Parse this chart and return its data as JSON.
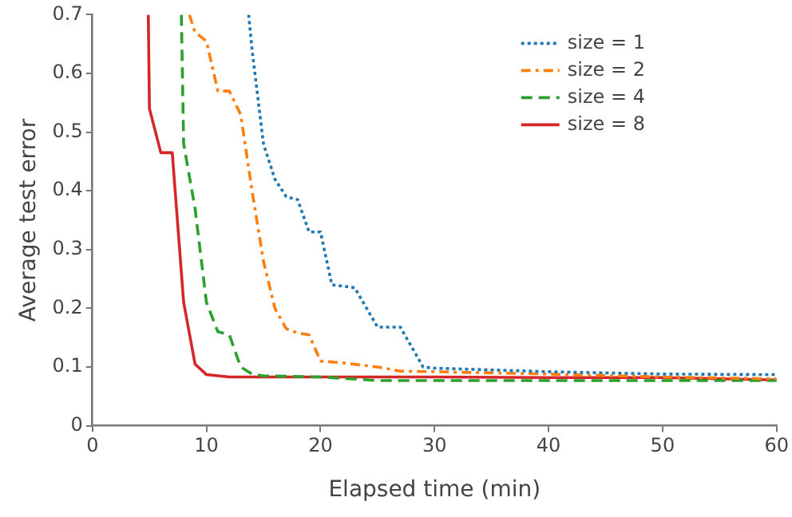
{
  "chart_data": {
    "type": "line",
    "xlabel": "Elapsed time (min)",
    "ylabel": "Average test error",
    "xlim": [
      0,
      60
    ],
    "ylim": [
      0,
      0.7
    ],
    "xticks": [
      0,
      10,
      20,
      30,
      40,
      50,
      60
    ],
    "yticks": [
      0,
      0.1,
      0.2,
      0.3,
      0.4,
      0.5,
      0.6,
      0.7
    ],
    "grid": false,
    "legend": "top right",
    "marker": "none",
    "series": [
      {
        "name": "size = 1",
        "color": "#1f77b4",
        "line_style": "dotted",
        "x": [
          13.7,
          14,
          15,
          16,
          17,
          18,
          19,
          20,
          21,
          23,
          25,
          27,
          29,
          30,
          40,
          50,
          60
        ],
        "values": [
          0.7,
          0.64,
          0.48,
          0.42,
          0.39,
          0.385,
          0.33,
          0.33,
          0.24,
          0.235,
          0.168,
          0.168,
          0.1,
          0.098,
          0.092,
          0.088,
          0.087
        ]
      },
      {
        "name": "size = 2",
        "color": "#ff7f0e",
        "line_style": "dashdot",
        "x": [
          8.5,
          9,
          10,
          11,
          12,
          13,
          14,
          15,
          16,
          17,
          18,
          19,
          20,
          22,
          25,
          27,
          30,
          40,
          50,
          60
        ],
        "values": [
          0.7,
          0.67,
          0.655,
          0.57,
          0.57,
          0.53,
          0.4,
          0.28,
          0.2,
          0.165,
          0.158,
          0.155,
          0.11,
          0.107,
          0.1,
          0.093,
          0.092,
          0.088,
          0.083,
          0.08
        ]
      },
      {
        "name": "size = 4",
        "color": "#2ca02c",
        "line_style": "dashed",
        "x": [
          7.8,
          8,
          9,
          10,
          11,
          12,
          13,
          14,
          15,
          20,
          25,
          30,
          60
        ],
        "values": [
          0.7,
          0.48,
          0.37,
          0.21,
          0.16,
          0.155,
          0.1,
          0.088,
          0.085,
          0.083,
          0.077,
          0.077,
          0.077
        ]
      },
      {
        "name": "size = 8",
        "color": "#d62728",
        "line_style": "solid",
        "x": [
          4.9,
          5,
          6,
          7,
          8,
          9,
          10,
          12,
          20,
          30,
          40,
          50,
          55,
          60
        ],
        "values": [
          0.7,
          0.54,
          0.465,
          0.465,
          0.21,
          0.105,
          0.087,
          0.083,
          0.083,
          0.083,
          0.082,
          0.082,
          0.08,
          0.078
        ]
      }
    ]
  }
}
